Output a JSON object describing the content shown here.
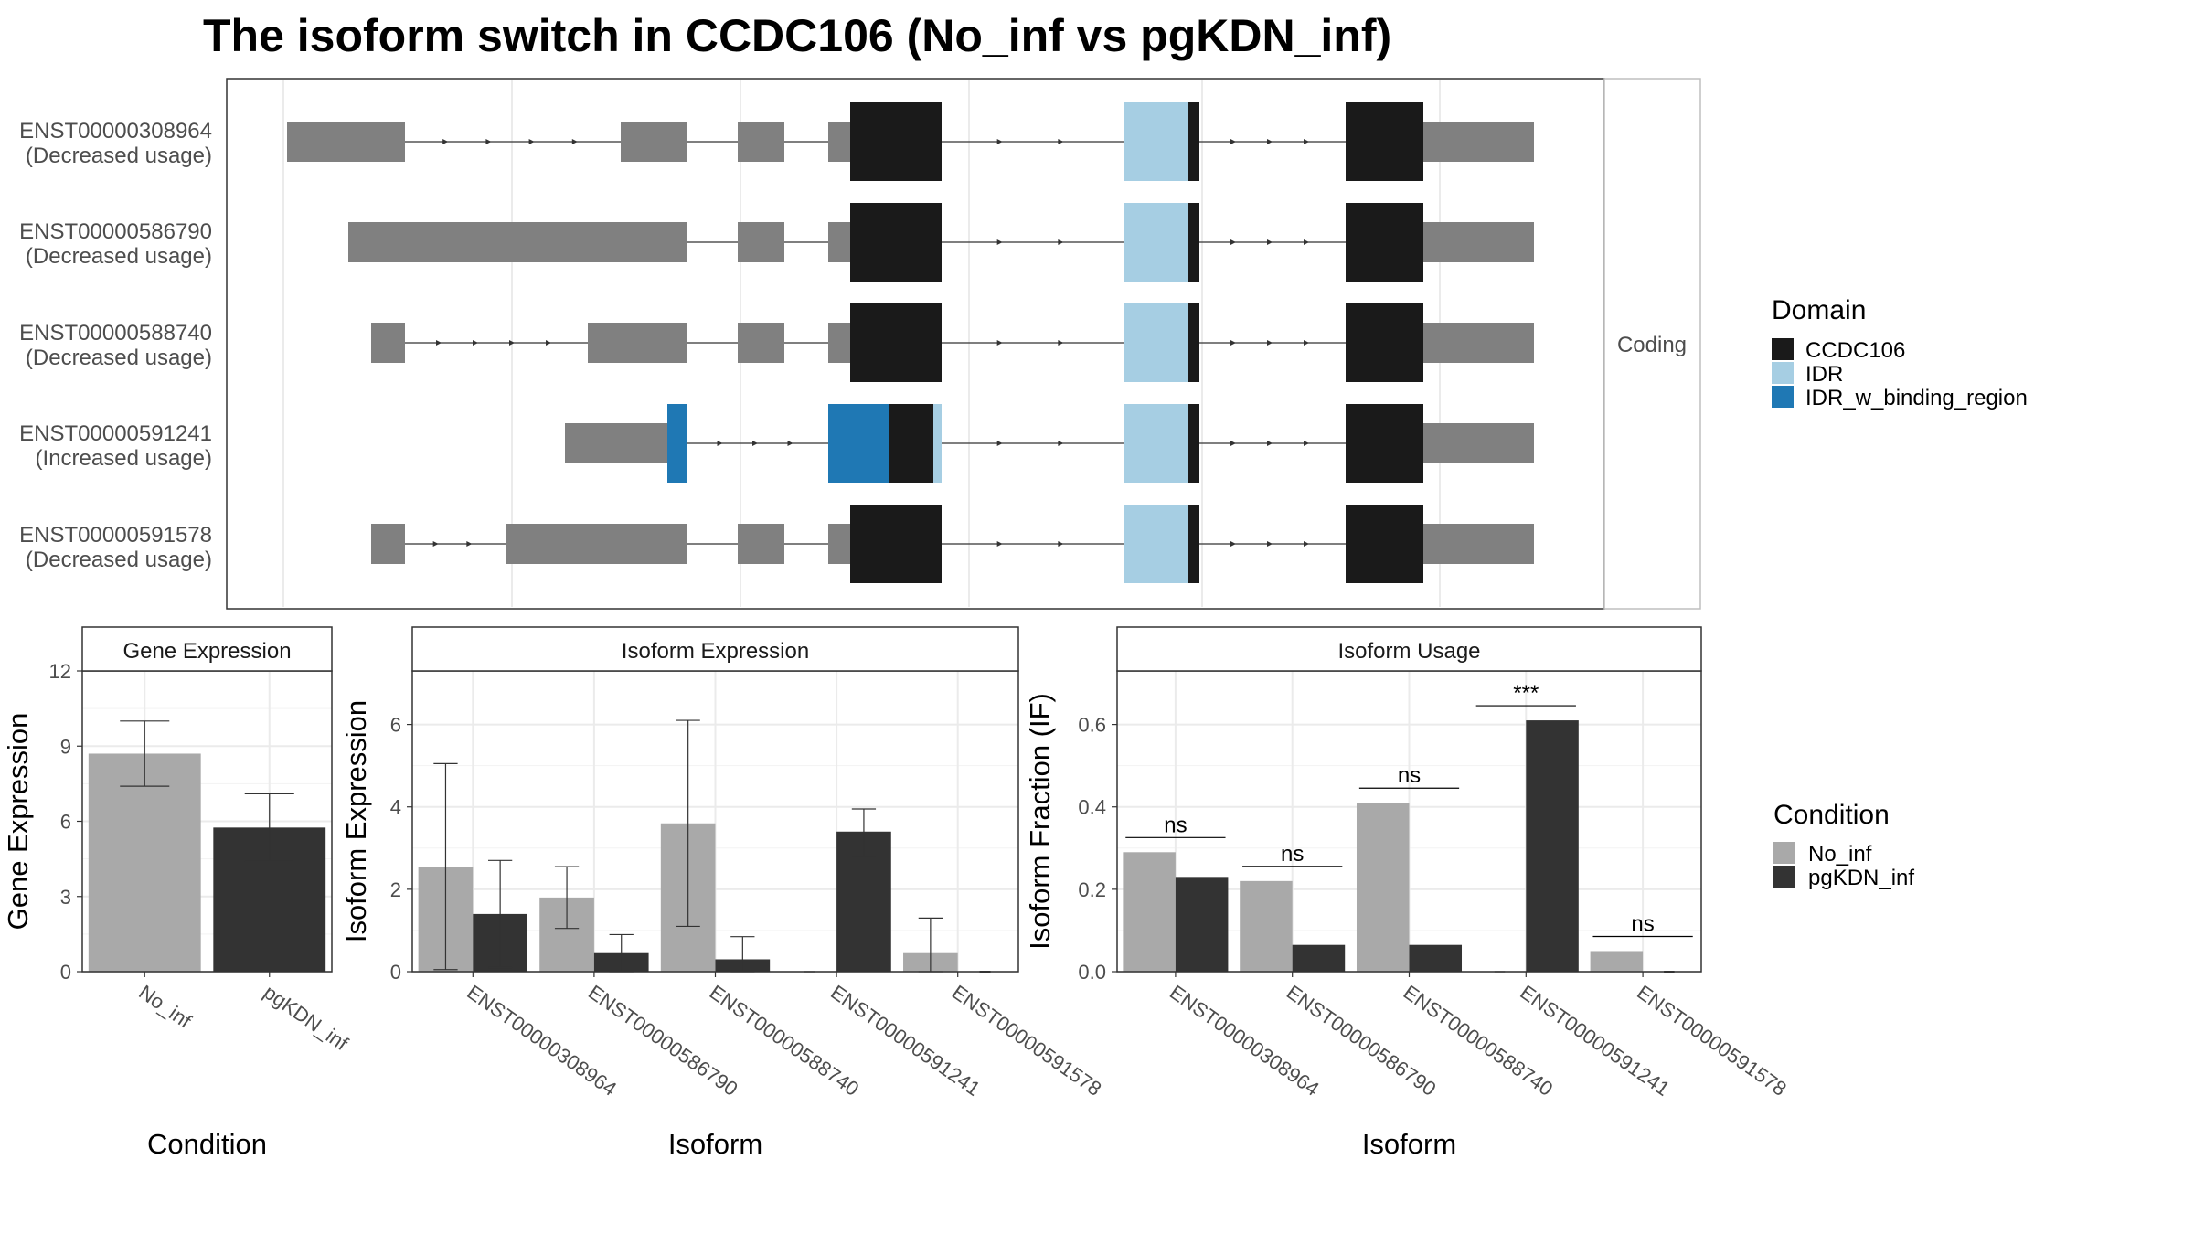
{
  "title": "The isoform switch in CCDC106 (No_inf vs pgKDN_inf)",
  "colors": {
    "utr": "#808080",
    "CCDC106": "#1a1a1a",
    "IDR": "#a6cee3",
    "IDR_w_binding_region": "#1f78b4",
    "No_inf": "#a9a9a9",
    "pgKDN_inf": "#333333",
    "panel_border": "#333333",
    "strip_fill": "#ffffff",
    "grid": "#ebebeb"
  },
  "structure": {
    "facet_label": "Coding",
    "transcripts": [
      {
        "id": "ENST00000308964",
        "usage": "(Decreased usage)"
      },
      {
        "id": "ENST00000586790",
        "usage": "(Decreased usage)"
      },
      {
        "id": "ENST00000588740",
        "usage": "(Decreased usage)"
      },
      {
        "id": "ENST00000591241",
        "usage": "(Increased usage)"
      },
      {
        "id": "ENST00000591578",
        "usage": "(Decreased usage)"
      }
    ]
  },
  "domain_legend": {
    "title": "Domain",
    "items": [
      {
        "label": "CCDC106",
        "color_key": "CCDC106"
      },
      {
        "label": "IDR",
        "color_key": "IDR"
      },
      {
        "label": "IDR_w_binding_region",
        "color_key": "IDR_w_binding_region"
      }
    ]
  },
  "condition_legend": {
    "title": "Condition",
    "items": [
      {
        "label": "No_inf",
        "color_key": "No_inf"
      },
      {
        "label": "pgKDN_inf",
        "color_key": "pgKDN_inf"
      }
    ]
  },
  "chart_data": [
    {
      "type": "bar",
      "panel": "Gene Expression",
      "categories": [
        "No_inf",
        "pgKDN_inf"
      ],
      "values": [
        8.7,
        5.75
      ],
      "error_low": [
        7.4,
        4.4
      ],
      "error_high": [
        10.0,
        7.1
      ],
      "xlabel": "Condition",
      "ylabel": "Gene Expression",
      "ylim": [
        0,
        12
      ],
      "yticks": [
        0,
        3,
        6,
        9,
        12
      ],
      "grid": true
    },
    {
      "type": "bar",
      "panel": "Isoform Expression",
      "categories": [
        "ENST00000308964",
        "ENST00000586790",
        "ENST00000588740",
        "ENST00000591241",
        "ENST00000591578"
      ],
      "series": [
        {
          "name": "No_inf",
          "values": [
            2.55,
            1.8,
            3.6,
            0.0,
            0.45
          ],
          "error_low": [
            0.05,
            1.05,
            1.1,
            0.0,
            0.0
          ],
          "error_high": [
            5.05,
            2.55,
            6.1,
            0.0,
            1.3
          ]
        },
        {
          "name": "pgKDN_inf",
          "values": [
            1.4,
            0.45,
            0.3,
            3.4,
            0.0
          ],
          "error_low": [
            0.1,
            0.0,
            0.0,
            2.8,
            0.0
          ],
          "error_high": [
            2.7,
            0.9,
            0.85,
            3.95,
            0.0
          ]
        }
      ],
      "xlabel": "Isoform",
      "ylabel": "Isoform Expression",
      "ylim": [
        0,
        7.3
      ],
      "yticks": [
        0,
        2,
        4,
        6
      ],
      "grid": true
    },
    {
      "type": "bar",
      "panel": "Isoform Usage",
      "categories": [
        "ENST00000308964",
        "ENST00000586790",
        "ENST00000588740",
        "ENST00000591241",
        "ENST00000591578"
      ],
      "series": [
        {
          "name": "No_inf",
          "values": [
            0.29,
            0.22,
            0.41,
            0.0,
            0.05
          ]
        },
        {
          "name": "pgKDN_inf",
          "values": [
            0.23,
            0.065,
            0.065,
            0.61,
            0.0
          ]
        }
      ],
      "significance": [
        "ns",
        "ns",
        "ns",
        "***",
        "ns"
      ],
      "xlabel": "Isoform",
      "ylabel": "Isoform Fraction (IF)",
      "ylim": [
        0,
        0.73
      ],
      "yticks": [
        0.0,
        0.2,
        0.4,
        0.6
      ],
      "grid": true
    }
  ]
}
